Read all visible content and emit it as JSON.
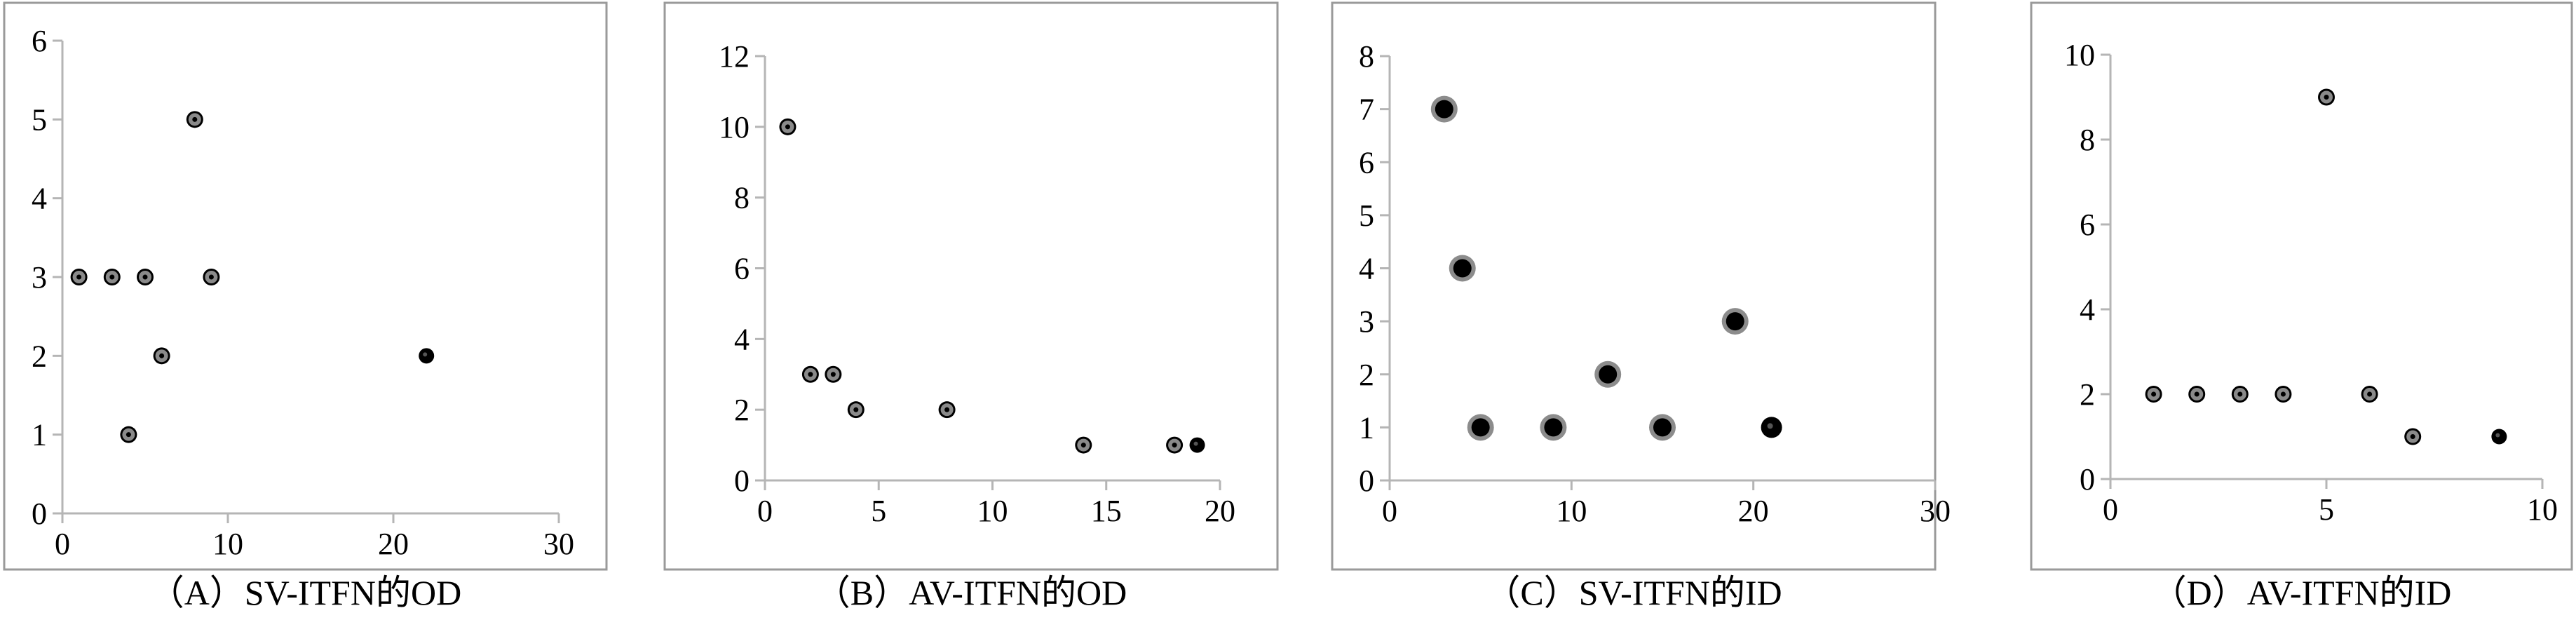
{
  "chart_data": [
    {
      "type": "scatter",
      "caption": "（A）SV-ITFN的OD",
      "xlim": [
        0,
        30
      ],
      "ylim": [
        0,
        6
      ],
      "x_ticks": [
        0,
        10,
        20,
        30
      ],
      "y_ticks": [
        0,
        1,
        2,
        3,
        4,
        5,
        6
      ],
      "grid": false,
      "marker_style": "small",
      "points": [
        {
          "x": 1,
          "y": 3
        },
        {
          "x": 3,
          "y": 3
        },
        {
          "x": 5,
          "y": 3
        },
        {
          "x": 9,
          "y": 3
        },
        {
          "x": 8,
          "y": 5
        },
        {
          "x": 6,
          "y": 2
        },
        {
          "x": 4,
          "y": 1
        },
        {
          "x": 22,
          "y": 2,
          "highlight": true
        }
      ]
    },
    {
      "type": "scatter",
      "caption": "（B）AV-ITFN的OD",
      "xlim": [
        0,
        20
      ],
      "ylim": [
        0,
        12
      ],
      "x_ticks": [
        0,
        5,
        10,
        15,
        20
      ],
      "y_ticks": [
        0,
        2,
        4,
        6,
        8,
        10,
        12
      ],
      "grid": false,
      "marker_style": "small",
      "points": [
        {
          "x": 1,
          "y": 10
        },
        {
          "x": 2,
          "y": 3
        },
        {
          "x": 3,
          "y": 3
        },
        {
          "x": 4,
          "y": 2
        },
        {
          "x": 8,
          "y": 2
        },
        {
          "x": 14,
          "y": 1
        },
        {
          "x": 18,
          "y": 1
        },
        {
          "x": 19,
          "y": 1,
          "highlight": true
        }
      ]
    },
    {
      "type": "scatter",
      "caption": "（C）SV-ITFN的ID",
      "xlim": [
        0,
        30
      ],
      "ylim": [
        0,
        8
      ],
      "x_ticks": [
        0,
        10,
        20,
        30
      ],
      "y_ticks": [
        0,
        1,
        2,
        3,
        4,
        5,
        6,
        7,
        8
      ],
      "grid": false,
      "marker_style": "large",
      "points": [
        {
          "x": 3,
          "y": 7
        },
        {
          "x": 4,
          "y": 4
        },
        {
          "x": 5,
          "y": 1
        },
        {
          "x": 9,
          "y": 1
        },
        {
          "x": 12,
          "y": 2
        },
        {
          "x": 15,
          "y": 1
        },
        {
          "x": 19,
          "y": 3
        },
        {
          "x": 21,
          "y": 1,
          "highlight": true
        }
      ]
    },
    {
      "type": "scatter",
      "caption": "（D）AV-ITFN的ID",
      "xlim": [
        0,
        10
      ],
      "ylim": [
        0,
        10
      ],
      "x_ticks": [
        0,
        5,
        10
      ],
      "y_ticks": [
        0,
        2,
        4,
        6,
        8,
        10
      ],
      "grid": false,
      "marker_style": "small",
      "points": [
        {
          "x": 1,
          "y": 2
        },
        {
          "x": 2,
          "y": 2
        },
        {
          "x": 3,
          "y": 2
        },
        {
          "x": 4,
          "y": 2
        },
        {
          "x": 5,
          "y": 9
        },
        {
          "x": 6,
          "y": 2
        },
        {
          "x": 7,
          "y": 1
        },
        {
          "x": 9,
          "y": 1,
          "highlight": true
        }
      ]
    }
  ]
}
